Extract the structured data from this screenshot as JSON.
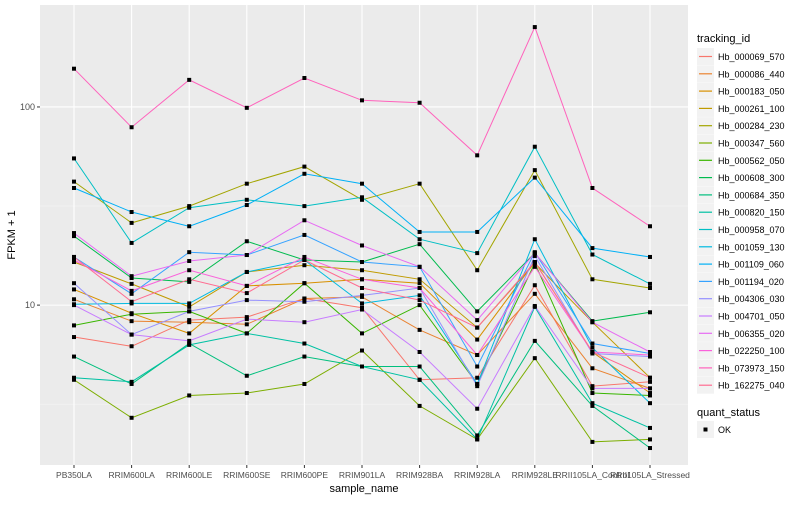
{
  "chart_data": {
    "type": "line",
    "xlabel": "sample_name",
    "ylabel": "FPKM + 1",
    "y_scale": "log10",
    "ylim": [
      1.56,
      327
    ],
    "y_ticks": [
      10,
      100
    ],
    "y_tick_labels": [
      "10",
      "100"
    ],
    "grid": true,
    "legend_placement": "right",
    "categories": [
      "PB350LA",
      "RRIM600LA",
      "RRIM600LE",
      "RRIM600SE",
      "RRIM600PE",
      "RRIM901LA",
      "RRIM928BA",
      "RRIM928LA",
      "RRIM928LE",
      "RRII105LA_Control",
      "RRII105LA_Stressed"
    ],
    "color_legend_title": "tracking_id",
    "shape_legend_title": "quant_status",
    "shape_legend_items": [
      "OK"
    ],
    "point_color": "#000000",
    "series": [
      {
        "name": "Hb_000069_570",
        "color": "#F8766D",
        "values": [
          6.9,
          6.2,
          8.4,
          8.7,
          10.8,
          9.7,
          4.2,
          4.3,
          12.6,
          3.9,
          4.1
        ]
      },
      {
        "name": "Hb_000086_440",
        "color": "#EA8331",
        "values": [
          10.7,
          8.3,
          8.2,
          8.0,
          10.8,
          11.0,
          7.5,
          5.6,
          11.4,
          4.8,
          3.8
        ]
      },
      {
        "name": "Hb_000183_050",
        "color": "#D89000",
        "values": [
          12.0,
          9.1,
          7.2,
          12.5,
          12.9,
          13.5,
          12.9,
          6.7,
          16.5,
          5.8,
          3.6
        ]
      },
      {
        "name": "Hb_000261_100",
        "color": "#C09B00",
        "values": [
          16.5,
          12.8,
          9.8,
          14.7,
          15.9,
          15.0,
          13.5,
          7.7,
          16.3,
          8.2,
          4.3
        ]
      },
      {
        "name": "Hb_000284_230",
        "color": "#A3A500",
        "values": [
          42,
          26,
          31.6,
          41,
          50,
          34,
          41,
          15,
          48,
          13.5,
          12.2
        ]
      },
      {
        "name": "Hb_000347_560",
        "color": "#7CAE00",
        "values": [
          4.2,
          2.7,
          3.5,
          3.6,
          4.0,
          5.9,
          3.1,
          2.1,
          5.4,
          2.04,
          2.1
        ]
      },
      {
        "name": "Hb_000562_050",
        "color": "#39B600",
        "values": [
          7.9,
          9.0,
          9.3,
          7.2,
          12.9,
          7.2,
          10.0,
          4.0,
          16.3,
          3.6,
          3.5
        ]
      },
      {
        "name": "Hb_000608_300",
        "color": "#00BB4E",
        "values": [
          22.3,
          13.7,
          13.1,
          21.0,
          16.9,
          16.5,
          20.3,
          9.3,
          18.3,
          8.3,
          9.2
        ]
      },
      {
        "name": "Hb_000684_350",
        "color": "#00BF7D",
        "values": [
          5.5,
          4.0,
          6.4,
          4.4,
          5.5,
          4.9,
          4.9,
          2.2,
          6.6,
          3.1,
          1.9
        ]
      },
      {
        "name": "Hb_000820_150",
        "color": "#00C1A3",
        "values": [
          4.3,
          4.1,
          6.3,
          7.2,
          6.4,
          4.9,
          4.2,
          2.1,
          9.8,
          3.2,
          2.4
        ]
      },
      {
        "name": "Hb_000958_070",
        "color": "#00BFC4",
        "values": [
          55,
          20.6,
          31,
          34,
          31.6,
          35,
          21.5,
          18.3,
          63,
          18,
          12.8
        ]
      },
      {
        "name": "Hb_001059_130",
        "color": "#00BAE0",
        "values": [
          10.1,
          10.2,
          10.2,
          14.7,
          16.9,
          10.2,
          11.2,
          4.0,
          21.5,
          6.1,
          3.2
        ]
      },
      {
        "name": "Hb_001109_060",
        "color": "#00B0F6",
        "values": [
          39,
          29.5,
          25,
          32,
          46,
          41,
          23.4,
          23.4,
          44,
          19.4,
          17.5
        ]
      },
      {
        "name": "Hb_001194_020",
        "color": "#35A2FF",
        "values": [
          17.5,
          11.4,
          18.5,
          17.9,
          22.6,
          16.5,
          15.6,
          4.9,
          18.5,
          6.4,
          5.7
        ]
      },
      {
        "name": "Hb_004306_030",
        "color": "#9590FF",
        "values": [
          12.9,
          7.1,
          9.3,
          10.6,
          10.4,
          11.2,
          12.2,
          3.9,
          17.7,
          5.7,
          5.5
        ]
      },
      {
        "name": "Hb_004701_050",
        "color": "#C77CFF",
        "values": [
          10.0,
          7.1,
          6.6,
          8.5,
          8.2,
          9.5,
          5.8,
          3.0,
          9.9,
          3.8,
          3.8
        ]
      },
      {
        "name": "Hb_006355_020",
        "color": "#E76BF3",
        "values": [
          23.1,
          14.0,
          16.7,
          17.9,
          26.8,
          20.0,
          15.6,
          8.4,
          18.3,
          8.2,
          5.8
        ]
      },
      {
        "name": "Hb_022250_100",
        "color": "#FA62DB",
        "values": [
          16.9,
          11.8,
          15.0,
          12.5,
          17.5,
          13.5,
          12.2,
          5.6,
          15.6,
          5.8,
          5.6
        ]
      },
      {
        "name": "Hb_073973_150",
        "color": "#FF62BC",
        "values": [
          156,
          79,
          137,
          99,
          140,
          108,
          105,
          57,
          253,
          39,
          25
        ]
      },
      {
        "name": "Hb_162275_040",
        "color": "#FF6C91",
        "values": [
          17.5,
          10.4,
          13.5,
          11.5,
          16.9,
          12.2,
          10.6,
          7.7,
          16.5,
          5.8,
          4.3
        ]
      }
    ]
  }
}
